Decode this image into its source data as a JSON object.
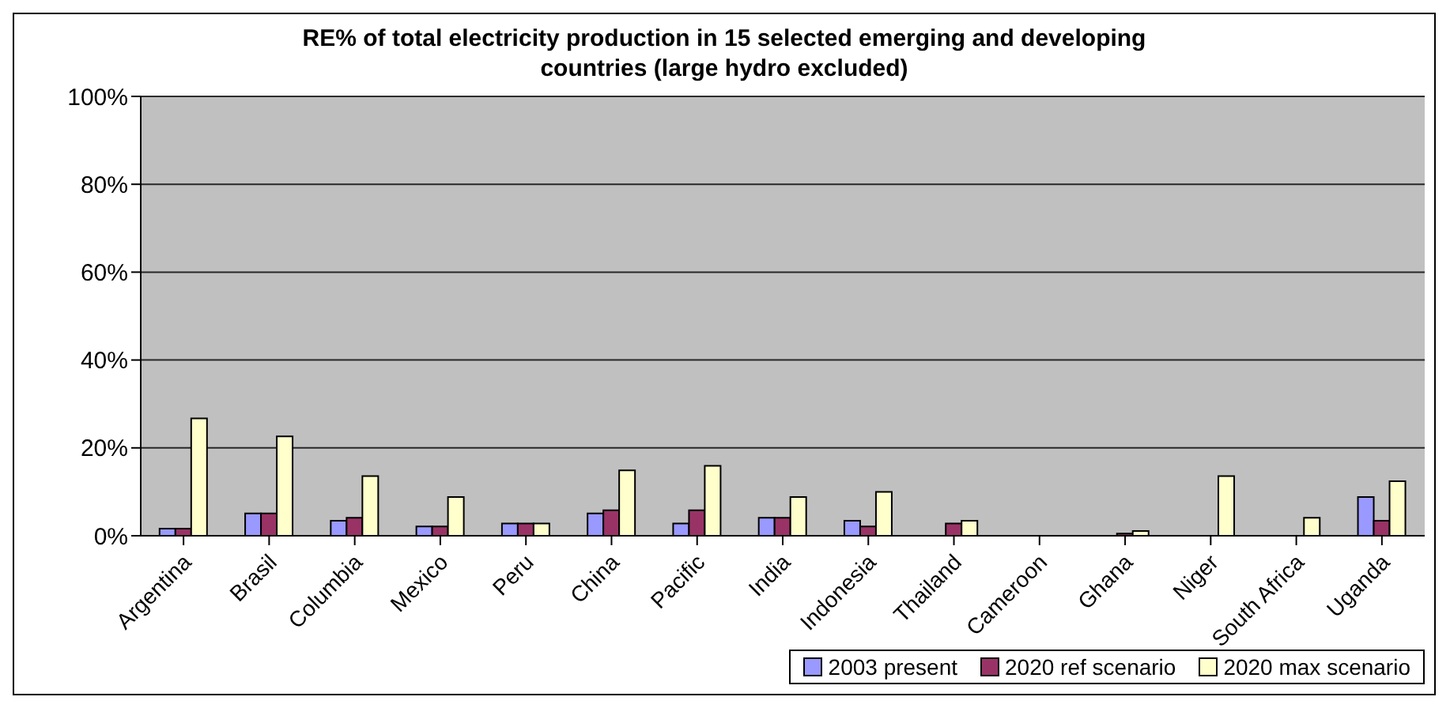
{
  "chart_data": {
    "type": "bar",
    "title": "RE% of total electricity production in 15 selected emerging and developing countries (large hydro excluded)",
    "categories": [
      "Argentina",
      "Brasil",
      "Columbia",
      "Mexico",
      "Peru",
      "China",
      "Pacific",
      "India",
      "Indonesia",
      "Thailand",
      "Cameroon",
      "Ghana",
      "Niger",
      "South Africa",
      "Uganda"
    ],
    "series": [
      {
        "name": "2003 present",
        "color": "#9999ff",
        "values": [
          1.6,
          5.1,
          3.4,
          2.1,
          2.8,
          5.1,
          2.8,
          4.1,
          3.4,
          0,
          0,
          0,
          0,
          0,
          8.8
        ]
      },
      {
        "name": "2020 ref scenario",
        "color": "#993366",
        "values": [
          1.6,
          5.1,
          4.1,
          2.1,
          2.8,
          5.8,
          5.8,
          4.1,
          2.1,
          2.8,
          0,
          0.5,
          0,
          0,
          3.4
        ]
      },
      {
        "name": "2020 max scenario",
        "color": "#ffffcc",
        "values": [
          26.7,
          22.6,
          13.6,
          8.8,
          2.8,
          14.9,
          15.9,
          8.8,
          10.0,
          3.4,
          0,
          1.1,
          13.6,
          4.1,
          12.4
        ]
      }
    ],
    "ylim": [
      0,
      100
    ],
    "yticks": [
      {
        "value": 0,
        "label": "0%"
      },
      {
        "value": 20,
        "label": "20%"
      },
      {
        "value": 40,
        "label": "40%"
      },
      {
        "value": 60,
        "label": "60%"
      },
      {
        "value": 80,
        "label": "80%"
      },
      {
        "value": 100,
        "label": "100%"
      }
    ],
    "grid": "y",
    "legend": "bottom right"
  }
}
